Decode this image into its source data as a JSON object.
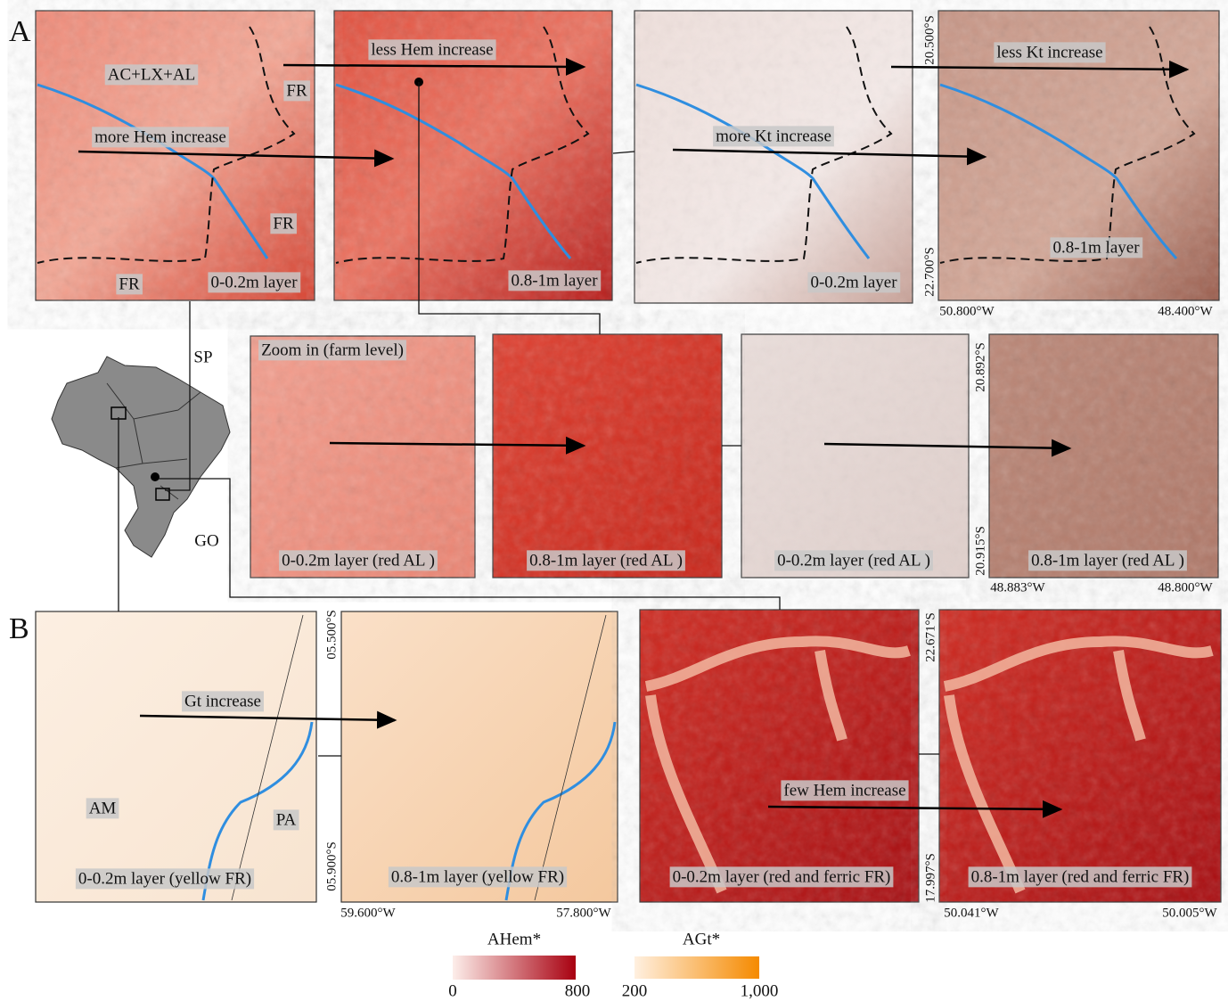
{
  "section_a": {
    "letter": "A",
    "maps": [
      {
        "layer": "0-0.2m layer",
        "arrow_text": "more Hem increase",
        "units": [
          "AC+LX+AL",
          "FR",
          "FR",
          "FR"
        ]
      },
      {
        "layer": "0.8-1m layer",
        "arrow_text": "less Hem increase"
      },
      {
        "layer": "0-0.2m layer",
        "arrow_text": "more Kt increase"
      },
      {
        "layer": "0.8-1m layer",
        "arrow_text": "less Kt increase"
      }
    ],
    "latitudes": [
      "20.500°S",
      "22.700°S"
    ],
    "longitudes": [
      "50.800°W",
      "48.400°W"
    ],
    "zoom": {
      "title": "Zoom in (farm level)",
      "layers": [
        "0-0.2m layer (red AL )",
        "0.8-1m layer (red AL )",
        "0-0.2m layer (red AL )",
        "0.8-1m layer (red AL )"
      ],
      "latitudes": [
        "20.892°S",
        "20.915°S"
      ],
      "longitudes": [
        "48.883°W",
        "48.800°W"
      ]
    }
  },
  "locator": {
    "states": [
      "SP",
      "GO"
    ]
  },
  "section_b": {
    "letter": "B",
    "left": {
      "layers": [
        "0-0.2m layer (yellow FR)",
        "0.8-1m layer (yellow FR)"
      ],
      "arrow_text": "Gt increase",
      "units": [
        "AM",
        "PA"
      ],
      "latitudes": [
        "05.500°S",
        "05.900°S"
      ],
      "longitudes": [
        "59.600°W",
        "57.800°W"
      ]
    },
    "right": {
      "layers": [
        "0-0.2m layer (red and ferric FR)",
        "0.8-1m layer (red and ferric FR)"
      ],
      "arrow_text": "few Hem increase",
      "latitudes": [
        "22.671°S",
        "17.997°S"
      ],
      "longitudes": [
        "50.041°W",
        "50.005°W"
      ]
    }
  },
  "legend": [
    {
      "title": "AHem*",
      "min": "0",
      "max": "800"
    },
    {
      "title": "AGt*",
      "min": "200",
      "max": "1,000"
    }
  ]
}
